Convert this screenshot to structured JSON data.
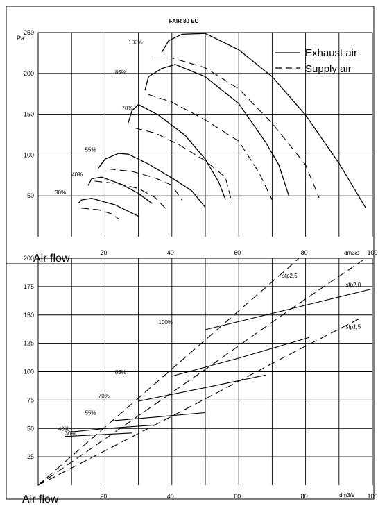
{
  "chart_data": [
    {
      "type": "line",
      "title": "FAIR 80 EC",
      "ylabel": "Pa",
      "xlabel": "Air flow",
      "xunit": "dm3/s",
      "xlim": [
        0,
        100
      ],
      "ylim": [
        0,
        250
      ],
      "x_ticks": [
        "20",
        "40",
        "60",
        "80",
        "100"
      ],
      "y_ticks": [
        "50",
        "100",
        "150",
        "200",
        "250"
      ],
      "grid": true,
      "legend": {
        "position": "top-right",
        "entries": [
          {
            "name": "Exhaust air",
            "style": "solid"
          },
          {
            "name": "Supply air",
            "style": "dashed"
          }
        ]
      },
      "series": [
        {
          "label": "100%",
          "style": "solid",
          "points": [
            [
              37,
              226
            ],
            [
              39,
              240
            ],
            [
              43,
              248
            ],
            [
              50,
              249
            ],
            [
              60,
              229
            ],
            [
              70,
              196
            ],
            [
              80,
              149
            ],
            [
              90,
              90
            ],
            [
              98,
              35
            ]
          ]
        },
        {
          "label": "100%",
          "style": "dashed",
          "points": [
            [
              35,
              219
            ],
            [
              40,
              219
            ],
            [
              50,
              207
            ],
            [
              60,
              181
            ],
            [
              70,
              139
            ],
            [
              80,
              88
            ],
            [
              84,
              48
            ]
          ]
        },
        {
          "label": "85%",
          "style": "solid",
          "points": [
            [
              32,
              180
            ],
            [
              33,
              196
            ],
            [
              37,
              206
            ],
            [
              41,
              211
            ],
            [
              50,
              196
            ],
            [
              60,
              163
            ],
            [
              68,
              116
            ],
            [
              72,
              88
            ],
            [
              75,
              50
            ]
          ]
        },
        {
          "label": "85%",
          "style": "dashed",
          "points": [
            [
              33,
              174
            ],
            [
              40,
              165
            ],
            [
              50,
              143
            ],
            [
              60,
              117
            ],
            [
              66,
              79
            ],
            [
              70,
              45
            ]
          ]
        },
        {
          "label": "70%",
          "style": "solid",
          "points": [
            [
              27,
              140
            ],
            [
              28,
              154
            ],
            [
              30,
              162
            ],
            [
              36,
              149
            ],
            [
              44,
              124
            ],
            [
              50,
              95
            ],
            [
              54,
              67
            ],
            [
              56,
              46
            ]
          ]
        },
        {
          "label": "70%",
          "style": "dashed",
          "points": [
            [
              29,
              133
            ],
            [
              35,
              127
            ],
            [
              42,
              113
            ],
            [
              50,
              93
            ],
            [
              56,
              73
            ],
            [
              58,
              41
            ]
          ]
        },
        {
          "label": "55%",
          "style": "solid",
          "points": [
            [
              18,
              84
            ],
            [
              20,
              95
            ],
            [
              24,
              102
            ],
            [
              27,
              101
            ],
            [
              33,
              89
            ],
            [
              40,
              72
            ],
            [
              46,
              56
            ],
            [
              50,
              36
            ]
          ]
        },
        {
          "label": "55%",
          "style": "dashed",
          "points": [
            [
              21,
              83
            ],
            [
              28,
              80
            ],
            [
              35,
              72
            ],
            [
              40,
              63
            ],
            [
              43,
              45
            ]
          ]
        },
        {
          "label": "40%",
          "style": "solid",
          "points": [
            [
              15,
              63
            ],
            [
              16,
              71
            ],
            [
              19,
              73
            ],
            [
              25,
              64
            ],
            [
              30,
              53
            ],
            [
              34,
              41
            ]
          ]
        },
        {
          "label": "40%",
          "style": "dashed",
          "points": [
            [
              17,
              68
            ],
            [
              24,
              65
            ],
            [
              30,
              59
            ],
            [
              35,
              48
            ],
            [
              38,
              35
            ]
          ]
        },
        {
          "label": "30%",
          "style": "solid",
          "points": [
            [
              12,
              41
            ],
            [
              13,
              45
            ],
            [
              16,
              47
            ],
            [
              23,
              39
            ],
            [
              28,
              29
            ],
            [
              30,
              25
            ]
          ]
        },
        {
          "label": "30%",
          "style": "dashed",
          "points": [
            [
              13,
              35
            ],
            [
              18,
              33
            ],
            [
              22,
              28
            ],
            [
              24,
              22
            ]
          ]
        }
      ],
      "annotations": [
        {
          "text": "100%",
          "x": 27,
          "y": 236
        },
        {
          "text": "85%",
          "x": 23,
          "y": 199
        },
        {
          "text": "70%",
          "x": 25,
          "y": 155
        },
        {
          "text": "55%",
          "x": 14,
          "y": 104
        },
        {
          "text": "40%",
          "x": 10,
          "y": 74
        },
        {
          "text": "30%",
          "x": 5,
          "y": 52
        }
      ]
    },
    {
      "type": "line",
      "title": "",
      "xlabel": "Air flow",
      "xunit": "dm3/s",
      "xlim": [
        0,
        100
      ],
      "ylim": [
        0,
        200
      ],
      "x_ticks": [
        "20",
        "40",
        "60",
        "80",
        "100"
      ],
      "y_ticks": [
        "25",
        "50",
        "75",
        "100",
        "125",
        "150",
        "175",
        "200"
      ],
      "grid": true,
      "series": [
        {
          "label": "sfp2,5",
          "style": "dashed",
          "points": [
            [
              0,
              0
            ],
            [
              25,
              64
            ],
            [
              50,
              128
            ],
            [
              75,
              192
            ],
            [
              78,
              200
            ]
          ]
        },
        {
          "label": "sfp2,0",
          "style": "dashed",
          "points": [
            [
              0,
              0
            ],
            [
              25,
              51
            ],
            [
              50,
              102
            ],
            [
              75,
              154
            ],
            [
              97,
              198
            ]
          ]
        },
        {
          "label": "sfp1,5",
          "style": "dashed",
          "points": [
            [
              0,
              0
            ],
            [
              25,
              38
            ],
            [
              50,
              76
            ],
            [
              75,
              115
            ],
            [
              97,
              148
            ]
          ]
        },
        {
          "label": "100%",
          "style": "solid",
          "points": [
            [
              50,
              137
            ],
            [
              75,
              155
            ],
            [
              100,
              173
            ]
          ]
        },
        {
          "label": "85%",
          "style": "solid",
          "points": [
            [
              40,
              96
            ],
            [
              60,
              112
            ],
            [
              81,
              130
            ]
          ]
        },
        {
          "label": "70%",
          "style": "solid",
          "points": [
            [
              30,
              74
            ],
            [
              50,
              86
            ],
            [
              68,
              97
            ]
          ]
        },
        {
          "label": "55%",
          "style": "solid",
          "points": [
            [
              23,
              57
            ],
            [
              35,
              60
            ],
            [
              50,
              64
            ]
          ]
        },
        {
          "label": "40%",
          "style": "solid",
          "points": [
            [
              10,
              47
            ],
            [
              20,
              50
            ],
            [
              35,
              53
            ]
          ]
        },
        {
          "label": "30%",
          "style": "solid",
          "points": [
            [
              8,
              43
            ],
            [
              15,
              44
            ],
            [
              28,
              46
            ]
          ]
        }
      ],
      "annotations": [
        {
          "text": "sfp2,5",
          "x": 73,
          "y": 183
        },
        {
          "text": "sfp2,0",
          "x": 92,
          "y": 175
        },
        {
          "text": "sfp1,5",
          "x": 92,
          "y": 138
        },
        {
          "text": "100%",
          "x": 36,
          "y": 142
        },
        {
          "text": "85%",
          "x": 23,
          "y": 98
        },
        {
          "text": "70%",
          "x": 18,
          "y": 77
        },
        {
          "text": "55%",
          "x": 14,
          "y": 62
        },
        {
          "text": "40%",
          "x": 6,
          "y": 48
        },
        {
          "text": "30%",
          "x": 8,
          "y": 44
        }
      ]
    }
  ]
}
